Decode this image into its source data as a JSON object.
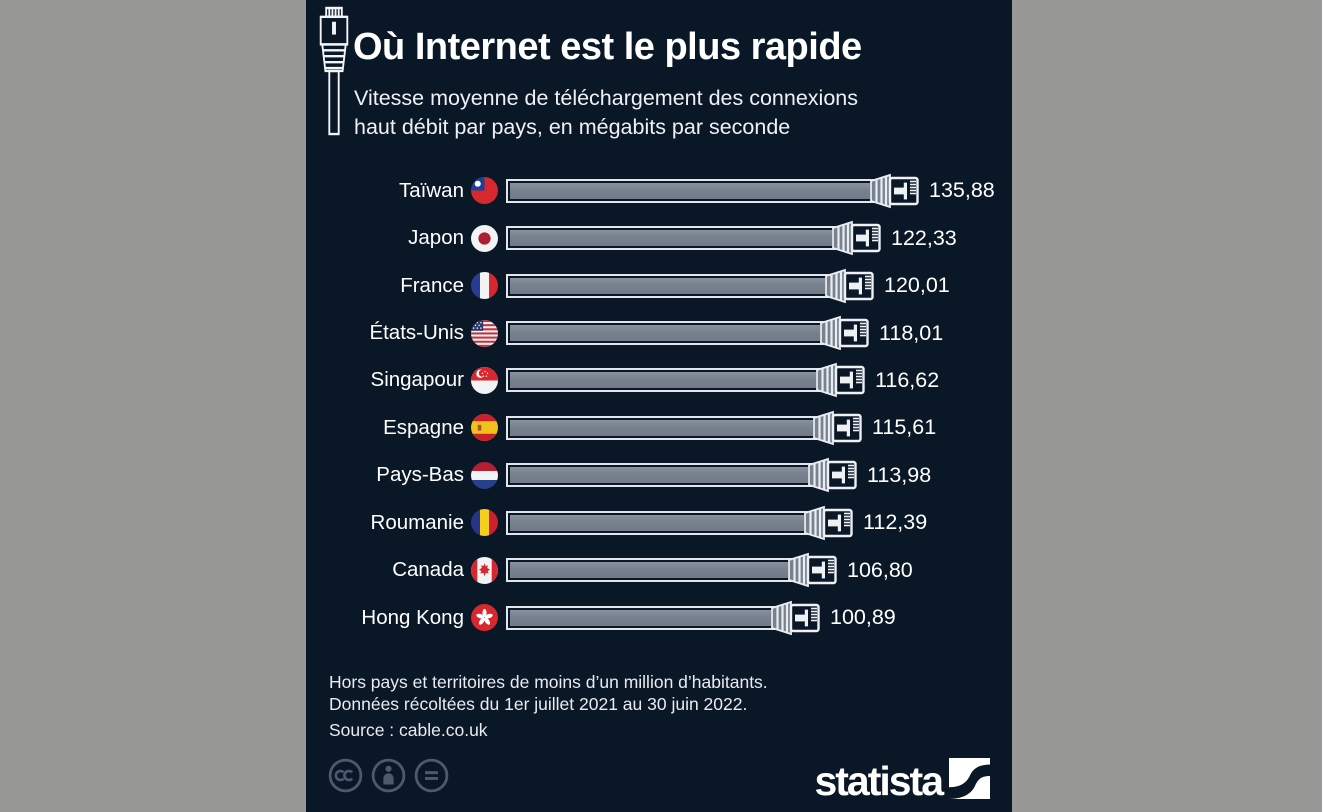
{
  "header": {
    "title": "Où Internet est le plus rapide",
    "subtitle_lines": [
      "Vitesse moyenne de téléchargement des connexions",
      "haut débit par pays, en mégabits par seconde"
    ],
    "decoration_icon": "ethernet-plug-icon"
  },
  "chart_data": {
    "type": "bar",
    "orientation": "horizontal",
    "title": "Où Internet est le plus rapide",
    "subtitle": "Vitesse moyenne de téléchargement des connexions haut débit par pays, en mégabits par seconde",
    "unit": "mégabits par seconde",
    "bar_style": "ethernet-cable-with-rj45-connector",
    "grid": false,
    "legend": false,
    "xlim": [
      0,
      140
    ],
    "categories": [
      "Taïwan",
      "Japon",
      "France",
      "États-Unis",
      "Singapour",
      "Espagne",
      "Pays-Bas",
      "Roumanie",
      "Canada",
      "Hong Kong"
    ],
    "values": [
      135.88,
      122.33,
      120.01,
      118.01,
      116.62,
      115.61,
      113.98,
      112.39,
      106.8,
      100.89
    ],
    "value_labels": [
      "135,88",
      "122,33",
      "120,01",
      "118,01",
      "116,62",
      "115,61",
      "113,98",
      "112,39",
      "106,80",
      "100,89"
    ],
    "flag_icons": [
      "taiwan-flag-icon",
      "japan-flag-icon",
      "france-flag-icon",
      "usa-flag-icon",
      "singapore-flag-icon",
      "spain-flag-icon",
      "netherlands-flag-icon",
      "romania-flag-icon",
      "canada-flag-icon",
      "hongkong-flag-icon"
    ],
    "flag_codes": [
      "tw",
      "jp",
      "fr",
      "us",
      "sg",
      "es",
      "nl",
      "ro",
      "ca",
      "hk"
    ]
  },
  "footer": {
    "notes": [
      "Hors pays et territoires de moins d’un million d’habitants.",
      "Données récoltées du 1er juillet 2021 au 30 juin 2022."
    ],
    "source": "Source : cable.co.uk"
  },
  "license": {
    "icons": [
      "cc-icon",
      "attribution-icon",
      "no-derivatives-icon"
    ]
  },
  "branding": {
    "wordmark": "statista",
    "logo_icon": "statista-logo-square"
  },
  "colors": {
    "outer_background": "#989896",
    "panel_background": "#0a1727",
    "bar_fill": "#78828f",
    "bar_outline": "#e2e5ea",
    "text": "#ffffff",
    "muted_text": "#e9ecf0",
    "license_icon": "#4d5a6e"
  }
}
